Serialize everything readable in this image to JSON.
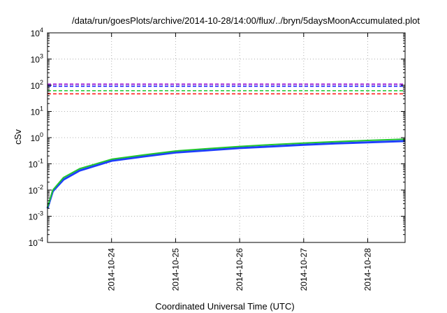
{
  "chart_data": {
    "type": "line",
    "title": "/data/run/goesPlots/archive/2014-10-28/14:00/flux/../bryn/5daysMoonAccumulated.plot",
    "xlabel": "Coordinated Universal Time (UTC)",
    "ylabel": "cSv",
    "y_scale": "log",
    "ylim": [
      0.0001,
      10000
    ],
    "xlim": [
      "2014-10-23 00:00",
      "2014-10-28 14:00"
    ],
    "x_ticks": [
      "2014-10-24",
      "2014-10-25",
      "2014-10-26",
      "2014-10-27",
      "2014-10-28"
    ],
    "y_ticks": [
      {
        "base": "10",
        "exp": "-4"
      },
      {
        "base": "10",
        "exp": "-3"
      },
      {
        "base": "10",
        "exp": "-2"
      },
      {
        "base": "10",
        "exp": "-1"
      },
      {
        "base": "10",
        "exp": "0"
      },
      {
        "base": "10",
        "exp": "1"
      },
      {
        "base": "10",
        "exp": "2"
      },
      {
        "base": "10",
        "exp": "3"
      },
      {
        "base": "10",
        "exp": "4"
      }
    ],
    "grid": true,
    "series": [
      {
        "color": "#1f3fff",
        "width": 3,
        "points": [
          [
            "2014-10-23 00:00",
            0.002
          ],
          [
            "2014-10-23 02:00",
            0.009
          ],
          [
            "2014-10-23 06:00",
            0.025
          ],
          [
            "2014-10-23 12:00",
            0.055
          ],
          [
            "2014-10-24 00:00",
            0.13
          ],
          [
            "2014-10-24 12:00",
            0.19
          ],
          [
            "2014-10-25 00:00",
            0.27
          ],
          [
            "2014-10-25 12:00",
            0.33
          ],
          [
            "2014-10-26 00:00",
            0.4
          ],
          [
            "2014-10-26 12:00",
            0.46
          ],
          [
            "2014-10-27 00:00",
            0.53
          ],
          [
            "2014-10-27 12:00",
            0.6
          ],
          [
            "2014-10-28 00:00",
            0.66
          ],
          [
            "2014-10-28 14:00",
            0.74
          ]
        ]
      },
      {
        "color": "#21c62e",
        "width": 2,
        "points": [
          [
            "2014-10-23 00:00",
            0.0022
          ],
          [
            "2014-10-23 02:00",
            0.01
          ],
          [
            "2014-10-23 06:00",
            0.03
          ],
          [
            "2014-10-23 12:00",
            0.065
          ],
          [
            "2014-10-24 00:00",
            0.15
          ],
          [
            "2014-10-24 12:00",
            0.22
          ],
          [
            "2014-10-25 00:00",
            0.31
          ],
          [
            "2014-10-25 12:00",
            0.38
          ],
          [
            "2014-10-26 00:00",
            0.46
          ],
          [
            "2014-10-26 12:00",
            0.54
          ],
          [
            "2014-10-27 00:00",
            0.62
          ],
          [
            "2014-10-27 12:00",
            0.7
          ],
          [
            "2014-10-28 00:00",
            0.78
          ],
          [
            "2014-10-28 14:00",
            0.88
          ]
        ]
      },
      {
        "color": "#9400d3",
        "dash": "5,3",
        "width": 1.6,
        "points": [
          [
            "2014-10-23 00:00",
            110
          ],
          [
            "2014-10-28 14:00",
            110
          ]
        ]
      },
      {
        "color": "#1a1aff",
        "dash": "5,3",
        "width": 1.6,
        "points": [
          [
            "2014-10-23 00:00",
            92
          ],
          [
            "2014-10-28 14:00",
            92
          ]
        ]
      },
      {
        "color": "#2ecc40",
        "dash": "5,3",
        "width": 1.6,
        "points": [
          [
            "2014-10-23 00:00",
            62
          ],
          [
            "2014-10-28 14:00",
            62
          ]
        ]
      },
      {
        "color": "#ff2020",
        "dash": "5,3",
        "width": 1.6,
        "points": [
          [
            "2014-10-23 00:00",
            47
          ],
          [
            "2014-10-28 14:00",
            47
          ]
        ]
      }
    ]
  }
}
